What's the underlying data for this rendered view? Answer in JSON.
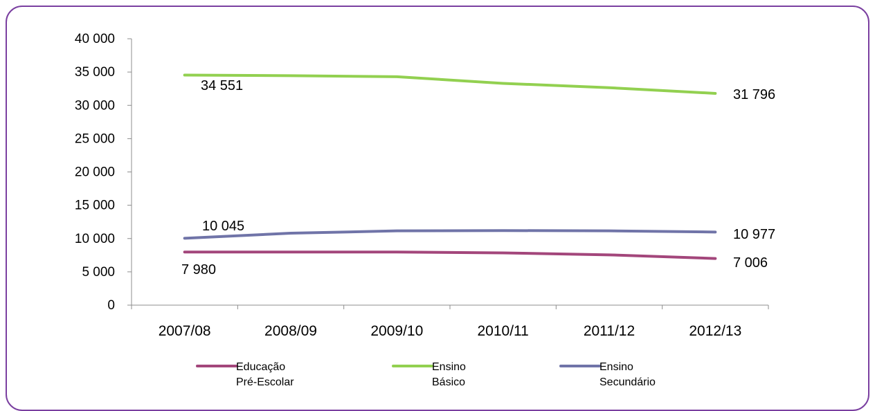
{
  "chart_data": {
    "type": "line",
    "categories": [
      "2007/08",
      "2008/09",
      "2009/10",
      "2010/11",
      "2011/12",
      "2012/13"
    ],
    "ylim": [
      0,
      40000
    ],
    "yticks": [
      "0",
      "5 000",
      "10 000",
      "15 000",
      "20 000",
      "25 000",
      "30 000",
      "35 000",
      "40 000"
    ],
    "ytick_values": [
      0,
      5000,
      10000,
      15000,
      20000,
      25000,
      30000,
      35000,
      40000
    ],
    "grid": false,
    "legend_position": "bottom",
    "series": [
      {
        "name": "Educação Pré-Escolar",
        "legend_lines": [
          "Educação",
          "Pré-Escolar"
        ],
        "color": "#a3467b",
        "values": [
          7980,
          7980,
          7980,
          7850,
          7550,
          7006
        ],
        "start_label": "7 980",
        "end_label": "7 006"
      },
      {
        "name": "Ensino Básico",
        "legend_lines": [
          "Ensino",
          "Básico"
        ],
        "color": "#92d050",
        "values": [
          34551,
          34450,
          34300,
          33300,
          32650,
          31796
        ],
        "start_label": "34 551",
        "end_label": "31 796"
      },
      {
        "name": "Ensino Secundário",
        "legend_lines": [
          "Ensino",
          "Secundário"
        ],
        "color": "#7074a8",
        "values": [
          10045,
          10800,
          11150,
          11200,
          11150,
          10977
        ],
        "start_label": "10 045",
        "end_label": "10 977"
      }
    ]
  }
}
